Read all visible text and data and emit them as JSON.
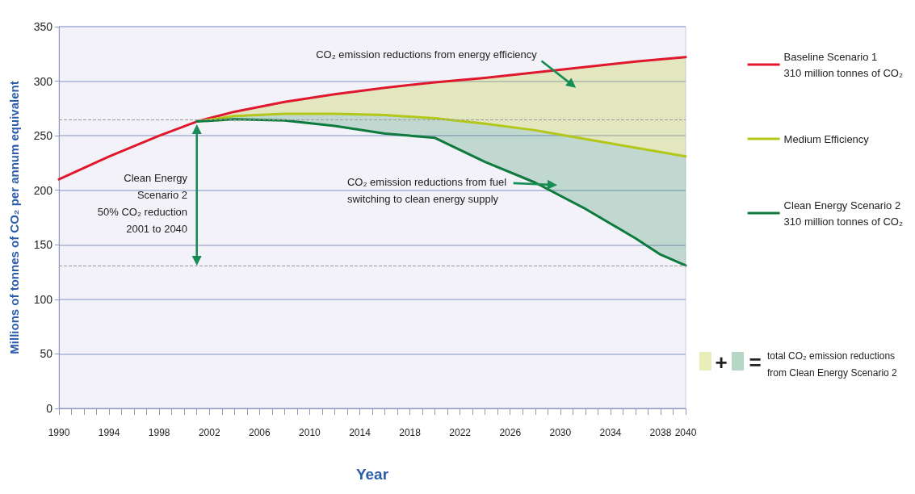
{
  "chart_data": {
    "type": "line",
    "xlabel": "Year",
    "ylabel": "Millions of tonnes of CO₂ per annum equivalent",
    "xlim": [
      1990,
      2040
    ],
    "ylim": [
      0,
      350
    ],
    "xticks": [
      1990,
      {
        "value": 1991,
        "label": null
      },
      {
        "value": 1992,
        "label": null
      },
      {
        "value": 1993,
        "label": null
      },
      1994,
      {
        "value": 1995,
        "label": null
      },
      {
        "value": 1996,
        "label": null
      },
      {
        "value": 1997,
        "label": null
      },
      1998,
      {
        "value": 1999,
        "label": null
      },
      {
        "value": 2000,
        "label": null
      },
      {
        "value": 2001,
        "label": null
      },
      2002,
      {
        "value": 2003,
        "label": null
      },
      {
        "value": 2004,
        "label": null
      },
      {
        "value": 2005,
        "label": null
      },
      2006,
      {
        "value": 2007,
        "label": null
      },
      {
        "value": 2008,
        "label": null
      },
      {
        "value": 2009,
        "label": null
      },
      2010,
      {
        "value": 2011,
        "label": null
      },
      {
        "value": 2012,
        "label": null
      },
      {
        "value": 2013,
        "label": null
      },
      2014,
      {
        "value": 2015,
        "label": null
      },
      {
        "value": 2016,
        "label": null
      },
      {
        "value": 2017,
        "label": null
      },
      2018,
      {
        "value": 2019,
        "label": null
      },
      {
        "value": 2020,
        "label": null
      },
      {
        "value": 2021,
        "label": null
      },
      2022,
      {
        "value": 2023,
        "label": null
      },
      {
        "value": 2024,
        "label": null
      },
      {
        "value": 2025,
        "label": null
      },
      2026,
      {
        "value": 2027,
        "label": null
      },
      {
        "value": 2028,
        "label": null
      },
      {
        "value": 2029,
        "label": null
      },
      2030,
      {
        "value": 2031,
        "label": null
      },
      {
        "value": 2032,
        "label": null
      },
      {
        "value": 2033,
        "label": null
      },
      2034,
      {
        "value": 2035,
        "label": null
      },
      {
        "value": 2036,
        "label": null
      },
      {
        "value": 2037,
        "label": null
      },
      2038,
      {
        "value": 2039,
        "label": null
      },
      2040
    ],
    "yticks": [
      0,
      50,
      100,
      150,
      200,
      250,
      300,
      350
    ],
    "grid": "y",
    "legend": "right",
    "marker": "none",
    "line_style": "solid",
    "series": [
      {
        "name": "Baseline Scenario 1\n310 million tonnes of CO₂",
        "color": "#e0182d",
        "x": [
          1990,
          1994,
          1998,
          2001,
          2004,
          2008,
          2012,
          2016,
          2020,
          2024,
          2028,
          2032,
          2036,
          2040
        ],
        "values": [
          210,
          231,
          250,
          263,
          272,
          281,
          288,
          294,
          299,
          303,
          308,
          313,
          318,
          322
        ]
      },
      {
        "name": "Medium Efficiency",
        "color": "#b2c719",
        "x": [
          2001,
          2004,
          2008,
          2012,
          2016,
          2020,
          2024,
          2028,
          2032,
          2036,
          2040
        ],
        "values": [
          263,
          268,
          270,
          270,
          269,
          266,
          261,
          255,
          247,
          239,
          231
        ],
        "lower": [
          263,
          268,
          270,
          270,
          269,
          266,
          261,
          255,
          247,
          239,
          231
        ],
        "upper": [
          263,
          272,
          281,
          288,
          294,
          299,
          303,
          308,
          313,
          318,
          322
        ]
      },
      {
        "name": "Clean Energy Scenario 2\n310 million tonnes of CO₂",
        "color": "#0e7a3e",
        "x": [
          2001,
          2004,
          2008,
          2012,
          2016,
          2020,
          2024,
          2028,
          2032,
          2036,
          2038,
          2040
        ],
        "values": [
          263,
          265,
          264,
          259,
          252,
          248,
          226,
          207,
          183,
          156,
          141,
          131
        ],
        "lower": [
          263,
          265,
          264,
          259,
          252,
          248,
          226,
          207,
          183,
          156,
          141,
          131
        ],
        "upper": [
          263,
          268,
          270,
          270,
          269,
          266,
          261,
          255,
          247,
          239,
          235,
          231
        ]
      }
    ],
    "ref_lines": [
      {
        "axis": "y",
        "value": 265,
        "label": null,
        "color": "#999999",
        "line_style": "dashed"
      },
      {
        "axis": "y",
        "value": 131,
        "label": null,
        "color": "#999999",
        "line_style": "dashed"
      }
    ],
    "annotations": [
      "CO₂ emission reductions from energy efficiency",
      "CO₂ emission reductions from fuel\nswitching to clean energy supply",
      "Clean Energy\nScenario 2\n50% CO₂ reduction\n2001 to 2040",
      "+",
      "=",
      "total CO₂ emission reductions\nfrom Clean Energy Scenario 2"
    ]
  }
}
